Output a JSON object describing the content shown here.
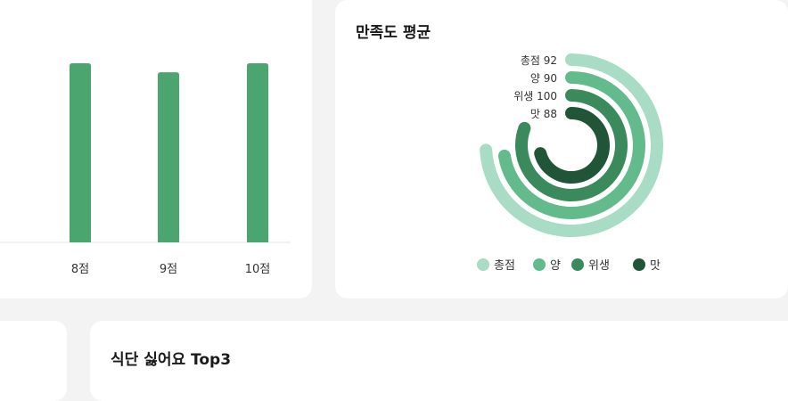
{
  "colors": {
    "total": "#a8dcc4",
    "amount": "#63bb8c",
    "hygiene": "#3b8a5c",
    "taste": "#215537",
    "bar": "#4aa56f"
  },
  "bar_chart": {
    "chart_data": {
      "type": "bar",
      "categories": [
        "8점",
        "9점",
        "10점"
      ],
      "values": [
        10,
        9.5,
        10
      ],
      "ylim": [
        0,
        10.4
      ]
    }
  },
  "satisfaction": {
    "title": "만족도 평균",
    "chart_data": {
      "type": "radial-bar",
      "series": [
        {
          "name": "총점",
          "value": 92,
          "label": "총점 92"
        },
        {
          "name": "양",
          "value": 90,
          "label": "양 90"
        },
        {
          "name": "위생",
          "value": 100,
          "label": "위생 100"
        },
        {
          "name": "맛",
          "value": 88,
          "label": "맛 88"
        }
      ],
      "ylim": [
        0,
        100
      ],
      "legend_position": "bottom"
    }
  },
  "dislike": {
    "title": "식단 싫어요 Top3"
  }
}
